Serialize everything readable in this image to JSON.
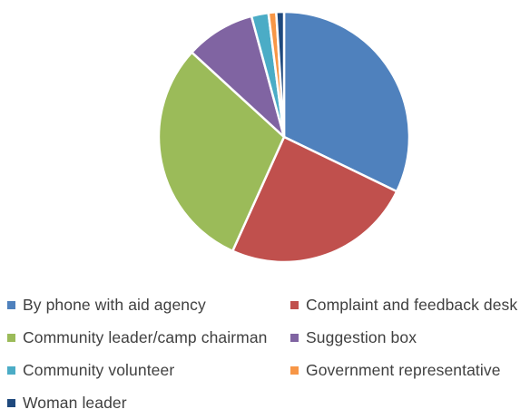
{
  "chart_data": {
    "type": "pie",
    "title": "",
    "start_angle_deg": 0,
    "direction": "clockwise",
    "slices": [
      {
        "label": "By phone with aid agency",
        "value": 32.2,
        "color": "#4f81bd"
      },
      {
        "label": "Complaint and feedback desk",
        "value": 24.6,
        "color": "#c0504d"
      },
      {
        "label": "Community leader/camp chairman",
        "value": 30.1,
        "color": "#9bbb59"
      },
      {
        "label": "Suggestion box",
        "value": 9.0,
        "color": "#8064a2"
      },
      {
        "label": "Community volunteer",
        "value": 2.2,
        "color": "#4bacc6"
      },
      {
        "label": "Government representative",
        "value": 1.0,
        "color": "#f79646"
      },
      {
        "label": "Woman leader",
        "value": 1.0,
        "color": "#1f497d"
      }
    ],
    "legend_position": "bottom",
    "slice_border_color": "#ffffff"
  }
}
